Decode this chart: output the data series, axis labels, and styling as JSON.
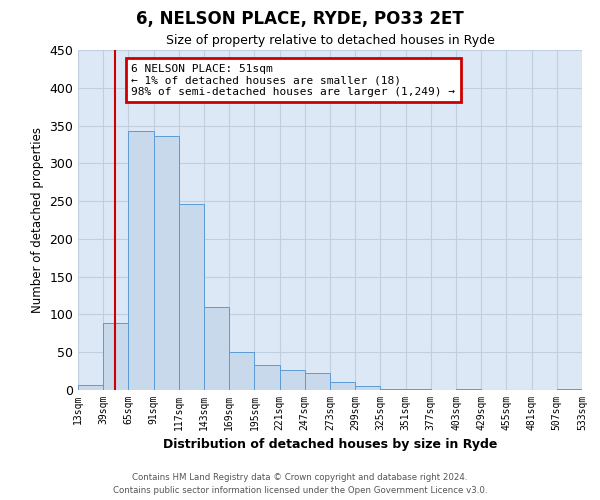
{
  "title": "6, NELSON PLACE, RYDE, PO33 2ET",
  "subtitle": "Size of property relative to detached houses in Ryde",
  "xlabel": "Distribution of detached houses by size in Ryde",
  "ylabel": "Number of detached properties",
  "bar_edges": [
    13,
    39,
    65,
    91,
    117,
    143,
    169,
    195,
    221,
    247,
    273,
    299,
    325,
    351,
    377,
    403,
    429,
    455,
    481,
    507,
    533
  ],
  "bar_heights": [
    7,
    89,
    343,
    336,
    246,
    110,
    50,
    33,
    27,
    22,
    11,
    5,
    1,
    1,
    0,
    1,
    0,
    0,
    0,
    1
  ],
  "bar_color": "#c9d9ec",
  "bar_edge_color": "#5b9bd5",
  "property_line_x": 51,
  "property_line_color": "#cc0000",
  "annotation_text": "6 NELSON PLACE: 51sqm\n← 1% of detached houses are smaller (18)\n98% of semi-detached houses are larger (1,249) →",
  "annotation_box_color": "#cc0000",
  "ylim": [
    0,
    450
  ],
  "yticks": [
    0,
    50,
    100,
    150,
    200,
    250,
    300,
    350,
    400,
    450
  ],
  "grid_color": "#c0cfe0",
  "background_color": "#dce8f5",
  "footer_line1": "Contains HM Land Registry data © Crown copyright and database right 2024.",
  "footer_line2": "Contains public sector information licensed under the Open Government Licence v3.0."
}
